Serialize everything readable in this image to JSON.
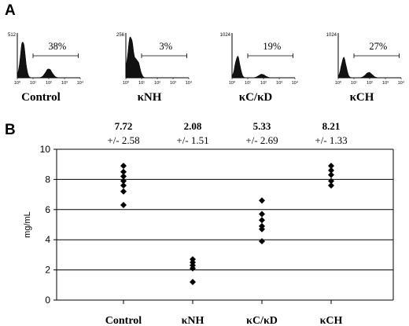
{
  "panel_a": {
    "letter": "A",
    "xaxis_ticks": [
      "10⁰",
      "10¹",
      "10²",
      "10³",
      "10⁴"
    ],
    "histograms": [
      {
        "name": "Control",
        "ymax_label": "512",
        "percent": "38%",
        "peaks": [
          {
            "center": 0.35,
            "height": 0.82,
            "width": 0.22
          },
          {
            "center": 2.0,
            "height": 0.2,
            "width": 0.3
          }
        ]
      },
      {
        "name": "κNH",
        "ymax_label": "256",
        "percent": "3%",
        "peaks": [
          {
            "center": 0.3,
            "height": 0.92,
            "width": 0.25
          },
          {
            "center": 0.75,
            "height": 0.35,
            "width": 0.22
          }
        ]
      },
      {
        "name": "κC/κD",
        "ymax_label": "1024",
        "percent": "19%",
        "peaks": [
          {
            "center": 0.35,
            "height": 0.48,
            "width": 0.22
          },
          {
            "center": 1.9,
            "height": 0.08,
            "width": 0.3
          }
        ]
      },
      {
        "name": "κCH",
        "ymax_label": "1024",
        "percent": "27%",
        "peaks": [
          {
            "center": 0.35,
            "height": 0.45,
            "width": 0.22
          },
          {
            "center": 1.95,
            "height": 0.12,
            "width": 0.3
          }
        ]
      }
    ]
  },
  "chart_data": {
    "letter": "B",
    "type": "scatter",
    "categories": [
      "Control",
      "κNH",
      "κC/κD",
      "κCH"
    ],
    "ylabel": "mg/mL",
    "ylim": [
      0,
      10
    ],
    "yticks": [
      0,
      2,
      4,
      6,
      8,
      10
    ],
    "grid": true,
    "means": [
      "7.72",
      "2.08",
      "5.33",
      "8.21"
    ],
    "sds": [
      "+/- 2.58",
      "+/- 1.51",
      "+/- 2.69",
      "+/- 1.33"
    ],
    "points": [
      [
        8.9,
        8.5,
        8.2,
        7.9,
        7.6,
        7.2,
        6.3
      ],
      [
        2.7,
        2.5,
        2.3,
        2.1,
        1.2
      ],
      [
        6.6,
        5.7,
        5.3,
        4.9,
        4.7,
        3.9
      ],
      [
        8.9,
        8.6,
        8.3,
        7.9,
        7.6
      ]
    ],
    "marker": "diamond",
    "marker_color": "#000000"
  }
}
